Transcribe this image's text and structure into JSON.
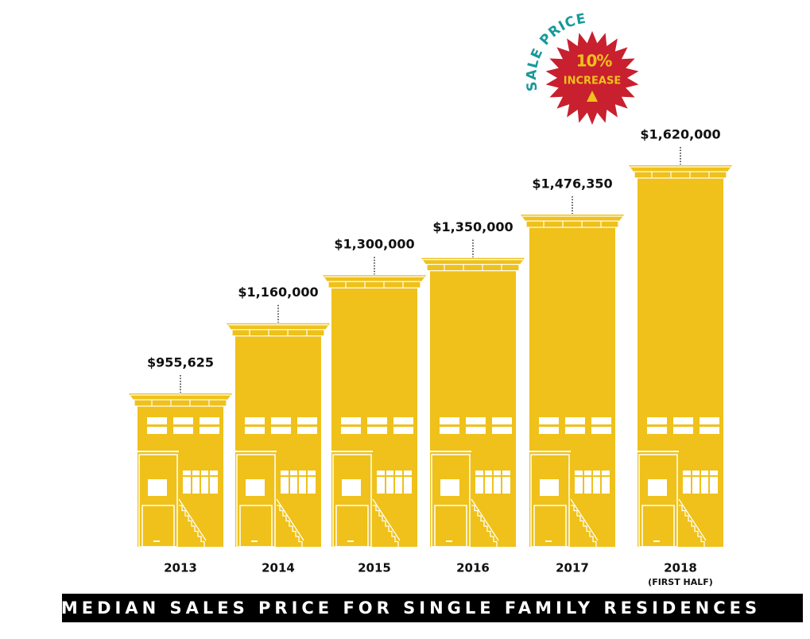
{
  "chart_data": {
    "type": "bar",
    "title": "MEDIAN SALES PRICE FOR SINGLE FAMILY RESIDENCES",
    "categories": [
      "2013",
      "2014",
      "2015",
      "2016",
      "2017",
      "2018"
    ],
    "category_sublabels": [
      null,
      null,
      null,
      null,
      null,
      "(FIRST HALF)"
    ],
    "values": [
      955625,
      1160000,
      1300000,
      1350000,
      1476350,
      1620000
    ],
    "value_labels": [
      "$955,625",
      "$1,160,000",
      "$1,300,000",
      "$1,350,000",
      "$1,476,350",
      "$1,620,000"
    ],
    "color": "#efc11a",
    "badge": {
      "arc_text": "SALE PRICE",
      "value_text": "10%",
      "text": "INCREASE",
      "color": "#c8202f",
      "arc_color": "#17999a"
    }
  }
}
